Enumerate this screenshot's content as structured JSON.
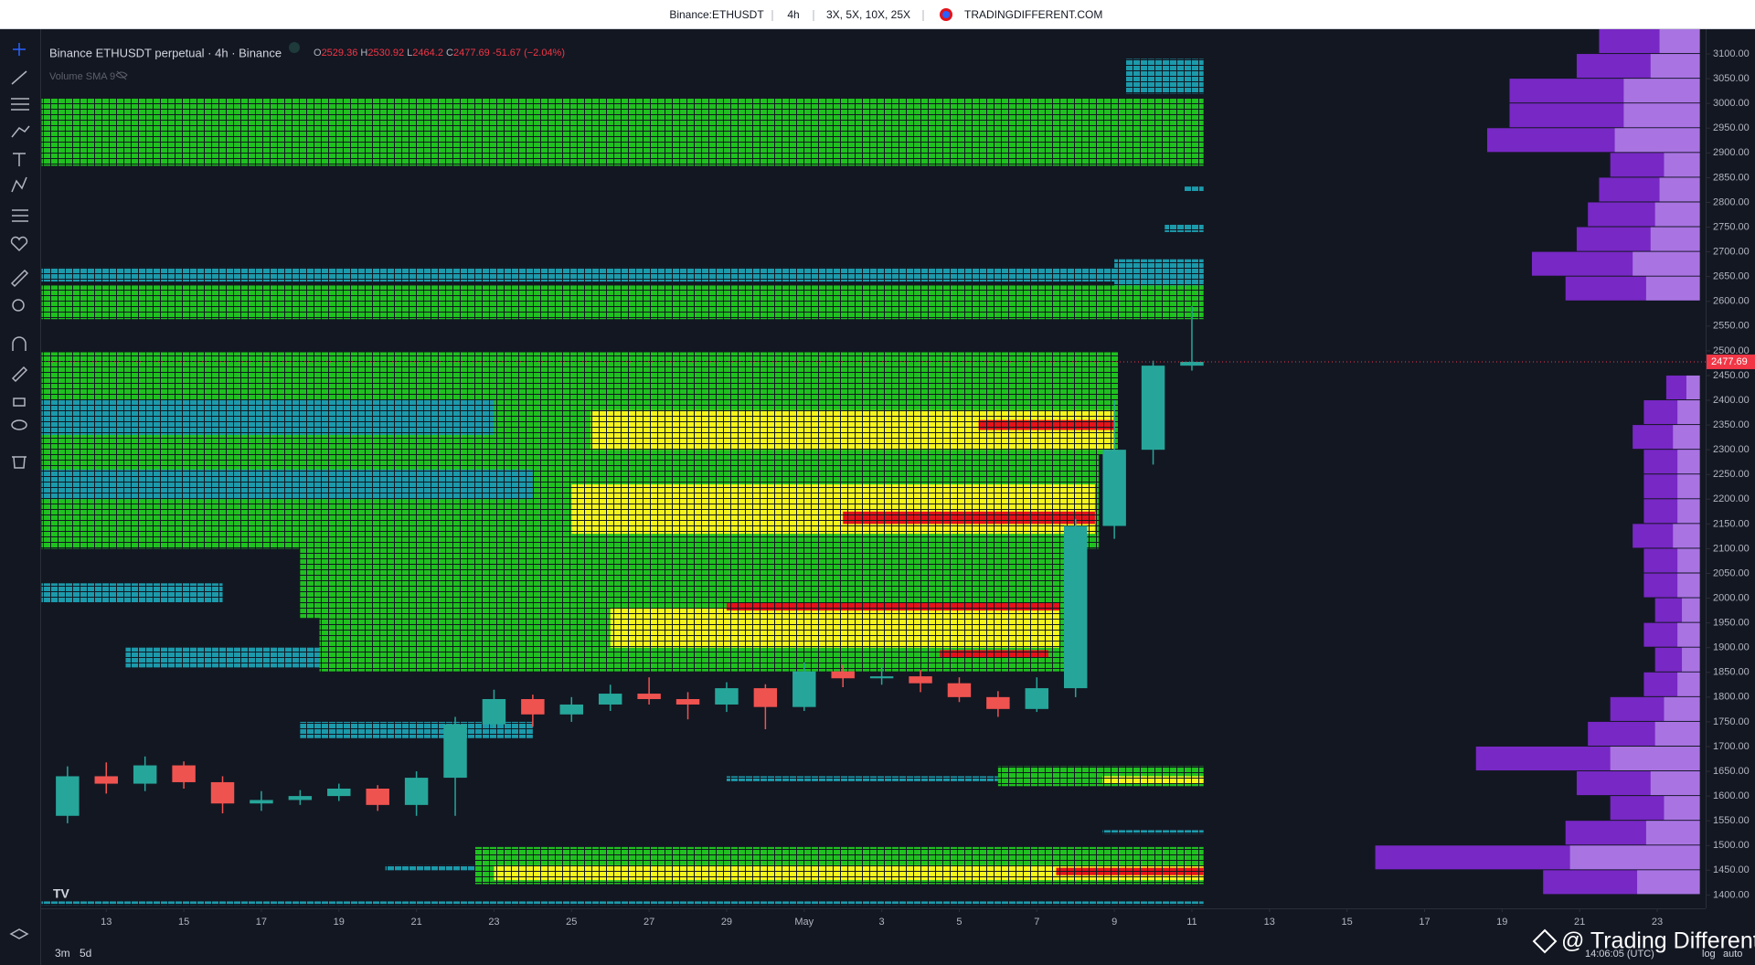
{
  "header": {
    "symbol": "Binance:ETHUSDT",
    "interval": "4h",
    "leverage": "3X, 5X, 10X, 25X",
    "site": "TRADINGDIFFERENT.COM"
  },
  "chart_data": {
    "type": "candlestick",
    "title": "Binance ETHUSDT perpetual · 4h · Binance",
    "ohlc_letters": [
      "O",
      "H",
      "L",
      "C"
    ],
    "ohlc": [
      2529.36,
      2530.92,
      2464.2,
      2477.69
    ],
    "change": -51.67,
    "change_label": "(−2.04%)",
    "indicator": "Volume SMA 9",
    "last_price": 2477.69,
    "x": [
      -1,
      0,
      1,
      2,
      3,
      4,
      5,
      6,
      7,
      8,
      9,
      10,
      11,
      12,
      13,
      14,
      15,
      16,
      17,
      18,
      19,
      20,
      21,
      22,
      23,
      24,
      25,
      26,
      27,
      28
    ],
    "open": [
      1560,
      1640,
      1625,
      1662,
      1628,
      1585,
      1592,
      1600,
      1615,
      1582,
      1637,
      1745,
      1796,
      1765,
      1785,
      1807,
      1796,
      1785,
      1818,
      1780,
      1852,
      1838,
      1842,
      1828,
      1800,
      1776,
      1818,
      2146,
      2300,
      2470
    ],
    "high": [
      1660,
      1668,
      1680,
      1670,
      1640,
      1610,
      1612,
      1625,
      1622,
      1650,
      1760,
      1815,
      1805,
      1800,
      1825,
      1840,
      1810,
      1830,
      1826,
      1870,
      1865,
      1862,
      1855,
      1840,
      1812,
      1840,
      2160,
      2400,
      2480,
      2590
    ],
    "low": [
      1545,
      1605,
      1610,
      1615,
      1565,
      1570,
      1582,
      1590,
      1570,
      1560,
      1560,
      1738,
      1740,
      1750,
      1772,
      1785,
      1755,
      1770,
      1735,
      1772,
      1820,
      1825,
      1810,
      1790,
      1760,
      1770,
      1800,
      2120,
      2270,
      2460
    ],
    "close": [
      1640,
      1625,
      1662,
      1628,
      1585,
      1592,
      1600,
      1615,
      1582,
      1637,
      1745,
      1796,
      1765,
      1785,
      1807,
      1796,
      1785,
      1818,
      1780,
      1852,
      1838,
      1842,
      1828,
      1800,
      1776,
      1818,
      2146,
      2300,
      2470,
      2477.69
    ],
    "up_color": "#26a69a",
    "down_color": "#ef5350",
    "heatmap": [
      {
        "start": -1.67,
        "end": 28.3,
        "low": 2874,
        "high": 3010,
        "color": "#20c020"
      },
      {
        "start": 26.3,
        "end": 28.3,
        "low": 3020,
        "high": 3090,
        "color": "#1c9aab"
      },
      {
        "start": 27.8,
        "end": 28.3,
        "low": 2822,
        "high": 2832,
        "color": "#1c9aab"
      },
      {
        "start": 27.3,
        "end": 28.3,
        "low": 2740,
        "high": 2755,
        "color": "#1c9aab"
      },
      {
        "start": -1.67,
        "end": 28.3,
        "low": 2640,
        "high": 2668,
        "color": "#1c9aab"
      },
      {
        "start": 26.0,
        "end": 28.3,
        "low": 2625,
        "high": 2685,
        "color": "#1c9aab"
      },
      {
        "start": -1.67,
        "end": 28.3,
        "low": 2564,
        "high": 2632,
        "color": "#20c020"
      },
      {
        "start": -1.67,
        "end": 26.1,
        "low": 2290,
        "high": 2497,
        "color": "#20c020"
      },
      {
        "start": -1.67,
        "end": 10,
        "low": 2330,
        "high": 2400,
        "color": "#1c9aab"
      },
      {
        "start": -1.67,
        "end": 25.6,
        "low": 2100,
        "high": 2290,
        "color": "#20c020"
      },
      {
        "start": -1.67,
        "end": 11,
        "low": 2200,
        "high": 2260,
        "color": "#1c9aab"
      },
      {
        "start": 12.5,
        "end": 26,
        "low": 2300,
        "high": 2380,
        "color": "#f5f51e"
      },
      {
        "start": 22.5,
        "end": 26,
        "low": 2340,
        "high": 2360,
        "color": "#e3131b"
      },
      {
        "start": 12,
        "end": 25.5,
        "low": 2130,
        "high": 2230,
        "color": "#f5f51e"
      },
      {
        "start": 19,
        "end": 25.5,
        "low": 2150,
        "high": 2175,
        "color": "#e3131b"
      },
      {
        "start": 5,
        "end": 25,
        "low": 1960,
        "high": 2100,
        "color": "#20c020"
      },
      {
        "start": -1.67,
        "end": 3,
        "low": 1990,
        "high": 2030,
        "color": "#1c9aab"
      },
      {
        "start": 5.5,
        "end": 24.8,
        "low": 1852,
        "high": 1960,
        "color": "#20c020"
      },
      {
        "start": 13,
        "end": 24.6,
        "low": 1900,
        "high": 1980,
        "color": "#f5f51e"
      },
      {
        "start": 16,
        "end": 24.6,
        "low": 1975,
        "high": 1990,
        "color": "#e3131b"
      },
      {
        "start": 21.5,
        "end": 24.3,
        "low": 1880,
        "high": 1895,
        "color": "#e3131b"
      },
      {
        "start": 0.5,
        "end": 5.5,
        "low": 1860,
        "high": 1900,
        "color": "#1c9aab"
      },
      {
        "start": 5,
        "end": 11,
        "low": 1717,
        "high": 1750,
        "color": "#1c9aab"
      },
      {
        "start": 16,
        "end": 23,
        "low": 1630,
        "high": 1640,
        "color": "#1c9aab"
      },
      {
        "start": 23,
        "end": 28.3,
        "low": 1620,
        "high": 1660,
        "color": "#20c020"
      },
      {
        "start": 25.7,
        "end": 28.3,
        "low": 1625,
        "high": 1640,
        "color": "#f5f51e"
      },
      {
        "start": 25.7,
        "end": 28.3,
        "low": 1524,
        "high": 1531,
        "color": "#1c9aab"
      },
      {
        "start": 7.2,
        "end": 9.5,
        "low": 1450,
        "high": 1460,
        "color": "#1c9aab"
      },
      {
        "start": 9.5,
        "end": 28.3,
        "low": 1422,
        "high": 1497,
        "color": "#20c020"
      },
      {
        "start": 10,
        "end": 28.3,
        "low": 1430,
        "high": 1460,
        "color": "#f5f51e"
      },
      {
        "start": 24.5,
        "end": 28.3,
        "low": 1440,
        "high": 1455,
        "color": "#e3131b"
      },
      {
        "start": -1.67,
        "end": 28.3,
        "low": 1380,
        "high": 1387,
        "color": "#1c9aab"
      }
    ],
    "profiles": [
      {
        "anchor": 41.1,
        "color": "#8b2be2",
        "bins": [
          2600,
          2650,
          2700,
          2750,
          2800,
          2850,
          2900,
          2950,
          3000,
          3050,
          3100
        ],
        "values": [
          120,
          150,
          110,
          100,
          90,
          80,
          190,
          170,
          170,
          110,
          90
        ]
      },
      {
        "anchor": 41.1,
        "color": "#8b2be2",
        "bins": [
          1400,
          1450,
          1500,
          1550,
          1600,
          1650,
          1700,
          1750,
          1800,
          1850,
          1900,
          1950,
          2000,
          2050,
          2100,
          2150,
          2200,
          2250,
          2300,
          2350,
          2400
        ],
        "values": [
          140,
          290,
          120,
          80,
          110,
          200,
          100,
          80,
          50,
          40,
          50,
          40,
          50,
          50,
          60,
          50,
          50,
          50,
          60,
          50,
          30
        ]
      }
    ],
    "xlim": [
      -1.68,
      41.25
    ],
    "ylim": [
      1373,
      3150
    ],
    "xticks": [
      {
        "value": 0,
        "label": "13"
      },
      {
        "value": 2,
        "label": "15"
      },
      {
        "value": 4,
        "label": "17"
      },
      {
        "value": 6,
        "label": "19"
      },
      {
        "value": 8,
        "label": "21"
      },
      {
        "value": 10,
        "label": "23"
      },
      {
        "value": 12,
        "label": "25"
      },
      {
        "value": 14,
        "label": "27"
      },
      {
        "value": 16,
        "label": "29"
      },
      {
        "value": 18,
        "label": "May"
      },
      {
        "value": 20,
        "label": "3"
      },
      {
        "value": 22,
        "label": "5"
      },
      {
        "value": 24,
        "label": "7"
      },
      {
        "value": 26,
        "label": "9"
      },
      {
        "value": 28,
        "label": "11"
      },
      {
        "value": 30,
        "label": "13"
      },
      {
        "value": 32,
        "label": "15"
      },
      {
        "value": 34,
        "label": "17"
      },
      {
        "value": 36,
        "label": "19"
      },
      {
        "value": 38,
        "label": "21"
      },
      {
        "value": 40,
        "label": "23"
      }
    ],
    "yticks": [
      {
        "value": 1400,
        "label": "1400.00"
      },
      {
        "value": 1450,
        "label": "1450.00"
      },
      {
        "value": 1500,
        "label": "1500.00"
      },
      {
        "value": 1550,
        "label": "1550.00"
      },
      {
        "value": 1600,
        "label": "1600.00"
      },
      {
        "value": 1650,
        "label": "1650.00"
      },
      {
        "value": 1700,
        "label": "1700.00"
      },
      {
        "value": 1750,
        "label": "1750.00"
      },
      {
        "value": 1800,
        "label": "1800.00"
      },
      {
        "value": 1850,
        "label": "1850.00"
      },
      {
        "value": 1900,
        "label": "1900.00"
      },
      {
        "value": 1950,
        "label": "1950.00"
      },
      {
        "value": 2000,
        "label": "2000.00"
      },
      {
        "value": 2050,
        "label": "2050.00"
      },
      {
        "value": 2100,
        "label": "2100.00"
      },
      {
        "value": 2150,
        "label": "2150.00"
      },
      {
        "value": 2200,
        "label": "2200.00"
      },
      {
        "value": 2250,
        "label": "2250.00"
      },
      {
        "value": 2300,
        "label": "2300.00"
      },
      {
        "value": 2350,
        "label": "2350.00"
      },
      {
        "value": 2400,
        "label": "2400.00"
      },
      {
        "value": 2450,
        "label": "2450.00"
      },
      {
        "value": 2500,
        "label": "2500.00"
      },
      {
        "value": 2550,
        "label": "2550.00"
      },
      {
        "value": 2600,
        "label": "2600.00"
      },
      {
        "value": 2650,
        "label": "2650.00"
      },
      {
        "value": 2700,
        "label": "2700.00"
      },
      {
        "value": 2750,
        "label": "2750.00"
      },
      {
        "value": 2800,
        "label": "2800.00"
      },
      {
        "value": 2850,
        "label": "2850.00"
      },
      {
        "value": 2900,
        "label": "2900.00"
      },
      {
        "value": 2950,
        "label": "2950.00"
      },
      {
        "value": 3000,
        "label": "3000.00"
      },
      {
        "value": 3050,
        "label": "3050.00"
      },
      {
        "value": 3100,
        "label": "3100.00"
      }
    ],
    "grid": false
  },
  "footer": {
    "ranges": [
      "3m",
      "5d"
    ],
    "time": "14:06:05 (UTC)",
    "log": "log",
    "auto": "auto",
    "watermark": "@ Trading Different"
  }
}
